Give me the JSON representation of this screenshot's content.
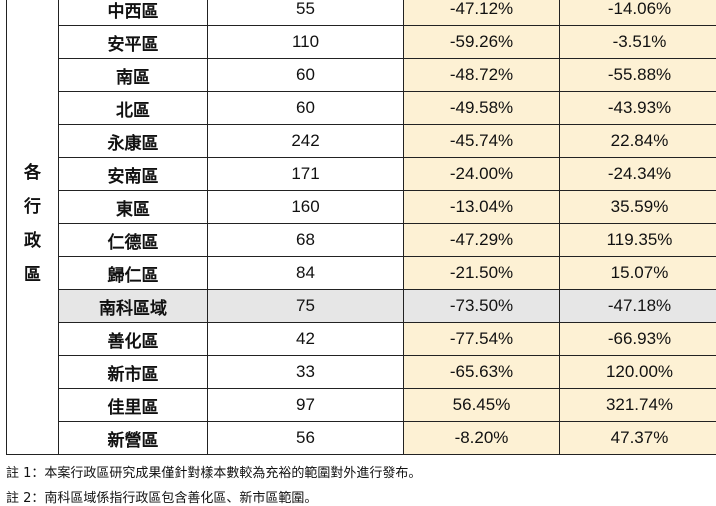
{
  "group_label": [
    "各",
    "行",
    "政",
    "區"
  ],
  "rows": [
    {
      "district": "中西區",
      "count": "55",
      "pct1": "-47.12%",
      "pct2": "-14.06%"
    },
    {
      "district": "安平區",
      "count": "110",
      "pct1": "-59.26%",
      "pct2": "-3.51%"
    },
    {
      "district": "南區",
      "count": "60",
      "pct1": "-48.72%",
      "pct2": "-55.88%"
    },
    {
      "district": "北區",
      "count": "60",
      "pct1": "-49.58%",
      "pct2": "-43.93%"
    },
    {
      "district": "永康區",
      "count": "242",
      "pct1": "-45.74%",
      "pct2": "22.84%"
    },
    {
      "district": "安南區",
      "count": "171",
      "pct1": "-24.00%",
      "pct2": "-24.34%"
    },
    {
      "district": "東區",
      "count": "160",
      "pct1": "-13.04%",
      "pct2": "35.59%"
    },
    {
      "district": "仁德區",
      "count": "68",
      "pct1": "-47.29%",
      "pct2": "119.35%"
    },
    {
      "district": "歸仁區",
      "count": "84",
      "pct1": "-21.50%",
      "pct2": "15.07%"
    },
    {
      "district": "南科區域",
      "count": "75",
      "pct1": "-73.50%",
      "pct2": "-47.18%"
    },
    {
      "district": "善化區",
      "count": "42",
      "pct1": "-77.54%",
      "pct2": "-66.93%"
    },
    {
      "district": "新市區",
      "count": "33",
      "pct1": "-65.63%",
      "pct2": "120.00%"
    },
    {
      "district": "佳里區",
      "count": "97",
      "pct1": "56.45%",
      "pct2": "321.74%"
    },
    {
      "district": "新營區",
      "count": "56",
      "pct1": "-8.20%",
      "pct2": "47.37%"
    }
  ],
  "notes": [
    "註 1：本案行政區研究成果僅針對樣本數較為充裕的範圍對外進行發布。",
    "註 2：南科區域係指行政區包含善化區、新市區範圍。"
  ],
  "colors": {
    "pct_background": "#fdf1d4",
    "highlight_background": "#e6e6e6",
    "border": "#222222"
  }
}
